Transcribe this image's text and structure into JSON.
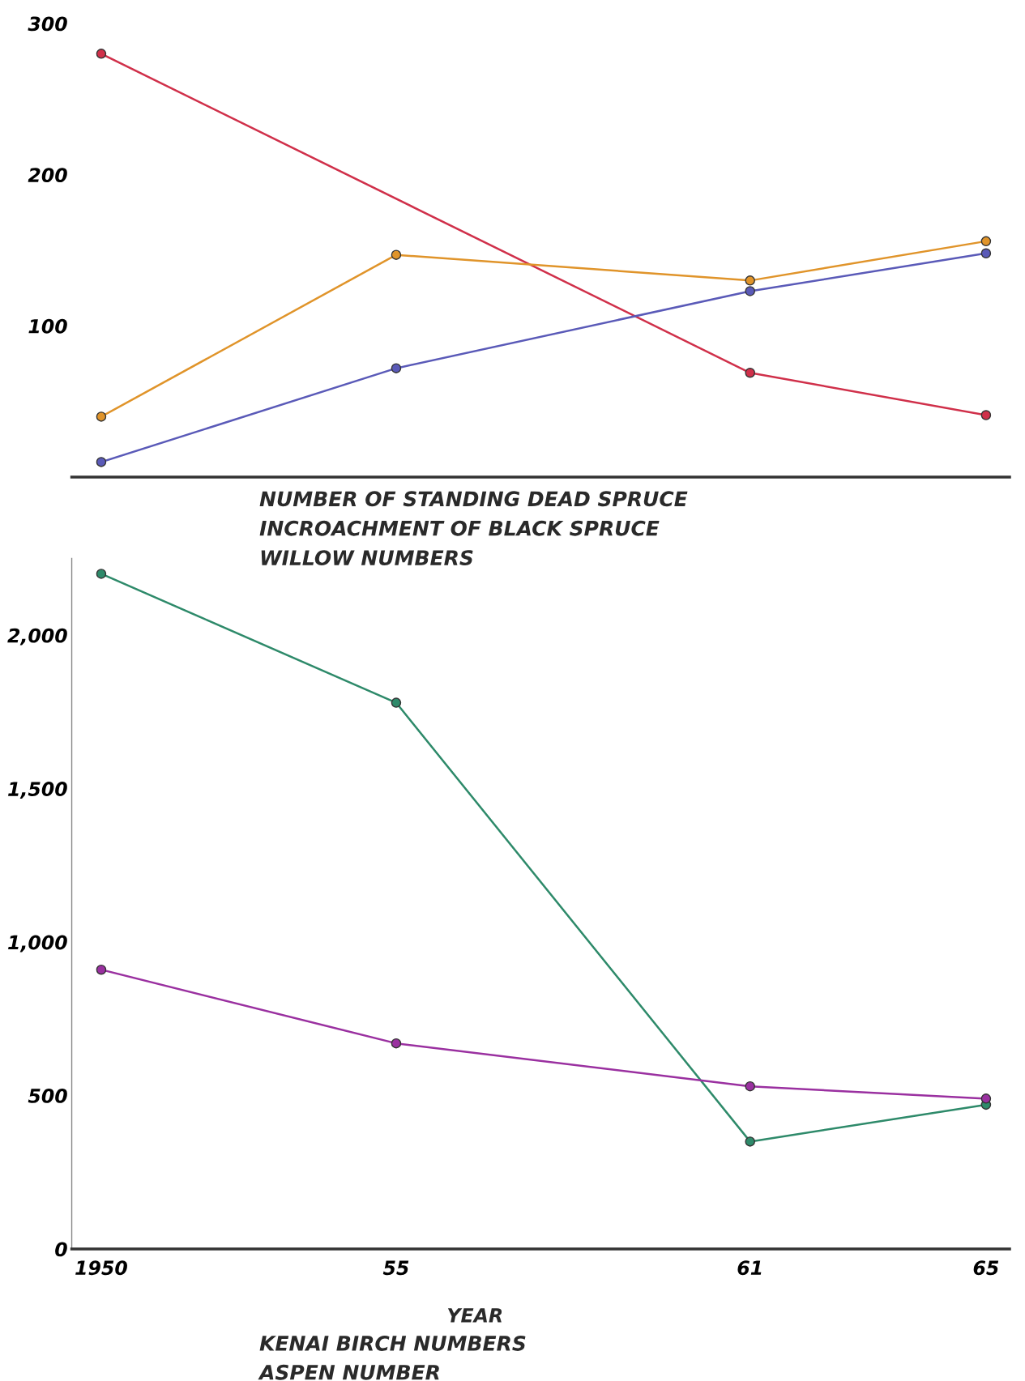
{
  "chart_data": [
    {
      "type": "line",
      "x": [
        1950,
        1955,
        1961,
        1965
      ],
      "xlim": [
        1949.5,
        1965.4
      ],
      "ylim": [
        0,
        300
      ],
      "yticks": [
        100,
        200,
        300
      ],
      "tick_labels": "y",
      "grid": false,
      "marker": "circle",
      "line_style": "solid",
      "series": [
        {
          "color": "#d0304a",
          "values": [
            280,
            null,
            69,
            41
          ]
        },
        {
          "color": "#e0942a",
          "values": [
            40,
            147,
            130,
            156
          ]
        },
        {
          "color": "#5a5ab8",
          "values": [
            10,
            72,
            123,
            148
          ]
        }
      ],
      "annotations": [
        "NUMBER OF STANDING DEAD SPRUCE",
        "INCROACHMENT OF BLACK SPRUCE",
        "WILLOW NUMBERS"
      ]
    },
    {
      "type": "line",
      "x": [
        1950,
        1955,
        1961,
        1965
      ],
      "xlim": [
        1949.5,
        1965.4
      ],
      "ylim": [
        0,
        2250
      ],
      "yticks": [
        {
          "value": 0,
          "label": "0"
        },
        {
          "value": 500,
          "label": "500"
        },
        {
          "value": 1000,
          "label": "1,000"
        },
        {
          "value": 1500,
          "label": "1,500"
        },
        {
          "value": 2000,
          "label": "2,000"
        }
      ],
      "xticks": [
        {
          "value": 1950,
          "label": "1950"
        },
        {
          "value": 1955,
          "label": "55"
        },
        {
          "value": 1961,
          "label": "61"
        },
        {
          "value": 1965,
          "label": "65"
        }
      ],
      "xlabel": "YEAR",
      "grid": false,
      "marker": "circle",
      "line_style": "solid",
      "series": [
        {
          "color": "#2e8a6a",
          "values": [
            2200,
            1780,
            350,
            470
          ]
        },
        {
          "color": "#9a30a0",
          "values": [
            910,
            670,
            530,
            490
          ]
        }
      ],
      "annotations": [
        "KENAI BIRCH NUMBERS",
        "ASPEN NUMBER"
      ]
    }
  ]
}
